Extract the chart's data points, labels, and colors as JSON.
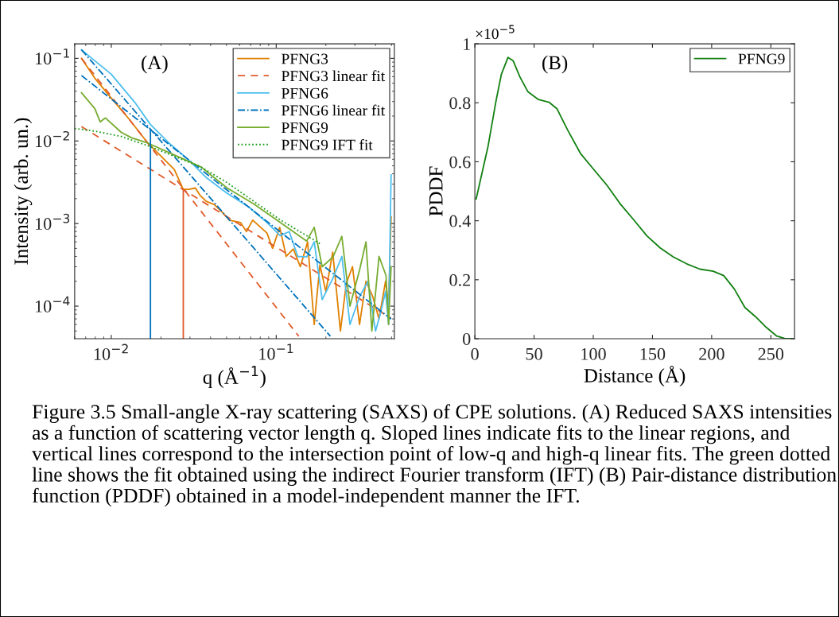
{
  "chart_data": [
    {
      "type": "line",
      "xlabel": "q (Å$^{−1}$)",
      "ylabel": "Intensity (arb. un.)",
      "log": "xy",
      "xlim": [
        0.006,
        0.52
      ],
      "ylim": [
        4.03e-05,
        0.15
      ],
      "xticks": [
        {
          "value": 0.01,
          "label": "10$^{−2}$"
        },
        {
          "value": 0.1,
          "label": "10$^{−1}$"
        }
      ],
      "yticks": [
        {
          "value": 0.0001,
          "label": "10$^{−4}$"
        },
        {
          "value": 0.001,
          "label": "10$^{−3}$"
        },
        {
          "value": 0.01,
          "label": "10$^{−2}$"
        },
        {
          "value": 0.1,
          "label": "10$^{−1}$"
        }
      ],
      "grid": false,
      "legend": "top right",
      "marker": "none",
      "annotations": [
        "(A)",
        "Figure 3.5 Small-angle X-ray scattering (SAXS) of CPE solutions. (A) Reduced SAXS intensities as a function of scattering vector length q. Sloped lines indicate fits to the linear regions, and vertical lines correspond to the intersection point of low-q and high-q linear fits. The green dotted line shows the fit obtained using the indirect Fourier transform (IFT) (B) Pair-distance distribution function (PDDF) obtained in a model-independent manner the IFT."
      ],
      "series": [
        {
          "name": "PFNG3",
          "color": "#e08000",
          "line_style": "solid",
          "x": [
            0.0066,
            0.00795,
            0.01,
            0.01285,
            0.01667,
            0.0208,
            0.0241,
            0.0273,
            0.0295,
            0.0324,
            0.0345,
            0.0376,
            0.042,
            0.0469,
            0.052,
            0.0607,
            0.066,
            0.072,
            0.0879,
            0.095,
            0.105,
            0.115,
            0.127,
            0.14,
            0.155,
            0.17,
            0.184,
            0.2,
            0.22,
            0.245,
            0.266,
            0.29,
            0.32,
            0.35,
            0.385,
            0.42,
            0.46,
            0.48,
            0.497
          ],
          "values": [
            0.1,
            0.0575,
            0.033,
            0.0183,
            0.00942,
            0.00605,
            0.00451,
            0.00259,
            0.0026,
            0.00269,
            0.0022,
            0.00186,
            0.0017,
            0.00138,
            0.0011,
            0.00103,
            0.0008,
            0.0011,
            0.000767,
            0.0005,
            0.0009,
            0.0004,
            0.000492,
            0.0003,
            0.0006,
            6e-05,
            0.000316,
            0.00015,
            0.00045,
            5e-05,
            0.000189,
            0.0003,
            6e-05,
            0.0002,
            0.00013,
            7e-05,
            0.0002,
            0.0001,
            0.0012
          ]
        },
        {
          "name": "PFNG3 linear fit",
          "color": "#e05a2a",
          "line_style": "dashed",
          "x": [
            0.0066,
            0.137
          ],
          "values": [
            0.1,
            4.32e-05
          ]
        },
        {
          "color": "#e05a2a",
          "line_style": "dashed",
          "x": [
            0.0066,
            0.497
          ],
          "values": [
            0.0149,
            7.13e-05
          ]
        },
        {
          "name": "PFNG6",
          "color": "#4dbeee",
          "line_style": "solid",
          "x": [
            0.0066,
            0.01,
            0.01384,
            0.01728,
            0.0224,
            0.029,
            0.0376,
            0.0505,
            0.0678,
            0.0879,
            0.1057,
            0.12,
            0.135,
            0.153,
            0.17,
            0.19,
            0.221,
            0.25,
            0.28,
            0.32,
            0.36,
            0.4,
            0.43,
            0.46,
            0.48,
            0.497
          ],
          "values": [
            0.127,
            0.0642,
            0.0296,
            0.0158,
            0.00942,
            0.00605,
            0.00361,
            0.00232,
            0.0016,
            0.00103,
            0.000713,
            0.0008,
            0.0004,
            0.000395,
            0.0006,
            0.00012,
            0.000219,
            0.0004,
            6e-05,
            0.00013,
            0.0002,
            5e-05,
            8.4e-05,
            0.00015,
            6e-05,
            0.00389
          ]
        },
        {
          "name": "PFNG6 linear fit",
          "color": "#0072bd",
          "line_style": "dashdot",
          "x": [
            0.0066,
            0.213
          ],
          "values": [
            0.127,
            4.32e-05
          ]
        },
        {
          "color": "#0072bd",
          "line_style": "dashdot",
          "x": [
            0.0066,
            0.497
          ],
          "values": [
            0.0619,
            6.97e-05
          ]
        },
        {
          "name": "PFNG9",
          "color": "#77ac30",
          "line_style": "solid",
          "x": [
            0.0066,
            0.00795,
            0.00857,
            0.00922,
            0.0115,
            0.0133,
            0.01667,
            0.0241,
            0.0349,
            0.0505,
            0.0731,
            0.1057,
            0.153,
            0.17,
            0.19,
            0.221,
            0.25,
            0.28,
            0.32,
            0.35,
            0.38,
            0.42,
            0.463,
            0.48,
            0.497
          ],
          "values": [
            0.0383,
            0.0246,
            0.017,
            0.019,
            0.0127,
            0.0109,
            0.00942,
            0.00676,
            0.00485,
            0.00269,
            0.00173,
            0.00103,
            0.000614,
            0.0009,
            0.0003,
            0.000395,
            0.0007,
            0.0001,
            0.000273,
            0.0006,
            5e-05,
            0.0004,
            0.000235,
            6e-05,
            0.0003
          ]
        },
        {
          "name": "PFNG9 IFT fit",
          "color": "#1e9e1e",
          "line_style": "dotted",
          "x": [
            0.006,
            0.00795,
            0.0115,
            0.01667,
            0.0241,
            0.0349,
            0.0505,
            0.0731,
            0.1057,
            0.153,
            0.184
          ],
          "values": [
            0.01416,
            0.01315,
            0.01133,
            0.00875,
            0.00652,
            0.00485,
            0.00312,
            0.00186,
            0.00111,
            0.000713,
            0.00057
          ]
        },
        {
          "color": "#0072bd",
          "line_style": "solid",
          "x": [
            0.01728,
            0.01728
          ],
          "values": [
            4.03e-05,
            0.01365
          ]
        },
        {
          "color": "#e05a2a",
          "line_style": "solid",
          "x": [
            0.02733,
            0.02733
          ],
          "values": [
            4.03e-05,
            0.00259
          ]
        }
      ]
    },
    {
      "type": "line",
      "xlabel": "Distance (Å)",
      "ylabel": "PDDF",
      "xlim": [
        0,
        270
      ],
      "ylim": [
        0,
        1
      ],
      "xticks": [
        0,
        50,
        100,
        150,
        200,
        250
      ],
      "yticks": [
        0,
        0.2,
        0.4,
        0.6,
        0.8,
        1
      ],
      "grid": false,
      "legend": "top right",
      "marker": "none",
      "annotations": [
        "(B)",
        "×10$^{−5}$"
      ],
      "series": [
        {
          "name": "PFNG9",
          "color": "#128012",
          "line_style": "solid",
          "x": [
            1.1,
            11.2,
            17.9,
            22.4,
            28,
            32.4,
            38,
            44.7,
            53.7,
            62.6,
            69.3,
            78.3,
            89.4,
            100.6,
            111.8,
            123,
            134.2,
            145.3,
            156.5,
            167.7,
            178.9,
            190.1,
            201.3,
            210.2,
            219.1,
            228.1,
            237,
            246,
            255,
            261.6,
            268.3
          ],
          "values": [
            0.474,
            0.654,
            0.807,
            0.897,
            0.954,
            0.942,
            0.888,
            0.838,
            0.811,
            0.802,
            0.78,
            0.708,
            0.627,
            0.573,
            0.519,
            0.456,
            0.403,
            0.349,
            0.308,
            0.277,
            0.254,
            0.236,
            0.229,
            0.214,
            0.169,
            0.106,
            0.075,
            0.039,
            0.009,
            0.001,
            0
          ]
        }
      ]
    }
  ]
}
